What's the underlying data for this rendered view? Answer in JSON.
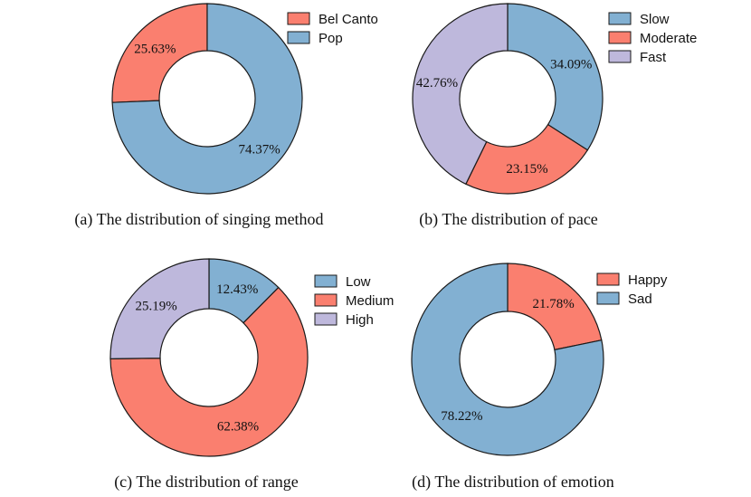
{
  "colors": {
    "blue": "#82B0D2",
    "red": "#FA7F6F",
    "purple": "#BEB8DC",
    "stroke": "#1a1a1a"
  },
  "chart_data": [
    {
      "type": "pie",
      "title": "(a) The distribution of singing method",
      "start": "top",
      "direction": "counterclockwise",
      "categories": [
        "Bel Canto",
        "Pop"
      ],
      "values": [
        25.63,
        74.37
      ],
      "labels": [
        "25.63%",
        "74.37%"
      ],
      "colors": [
        "#FA7F6F",
        "#82B0D2"
      ]
    },
    {
      "type": "pie",
      "title": "(b) The distribution of pace",
      "start": "top",
      "direction": "clockwise",
      "categories": [
        "Slow",
        "Moderate",
        "Fast"
      ],
      "values": [
        34.09,
        23.15,
        42.76
      ],
      "labels": [
        "34.09%",
        "23.15%",
        "42.76%"
      ],
      "colors": [
        "#82B0D2",
        "#FA7F6F",
        "#BEB8DC"
      ]
    },
    {
      "type": "pie",
      "title": "(c) The distribution of range",
      "start": "top",
      "direction": "clockwise",
      "categories": [
        "Low",
        "Medium",
        "High"
      ],
      "values": [
        12.43,
        62.38,
        25.19
      ],
      "labels": [
        "12.43%",
        "62.38%",
        "25.19%"
      ],
      "colors": [
        "#82B0D2",
        "#FA7F6F",
        "#BEB8DC"
      ]
    },
    {
      "type": "pie",
      "title": "(d) The distribution of emotion",
      "start": "top",
      "direction": "clockwise",
      "categories": [
        "Happy",
        "Sad"
      ],
      "values": [
        21.78,
        78.22
      ],
      "labels": [
        "21.78%",
        "78.22%"
      ],
      "colors": [
        "#FA7F6F",
        "#82B0D2"
      ]
    }
  ]
}
